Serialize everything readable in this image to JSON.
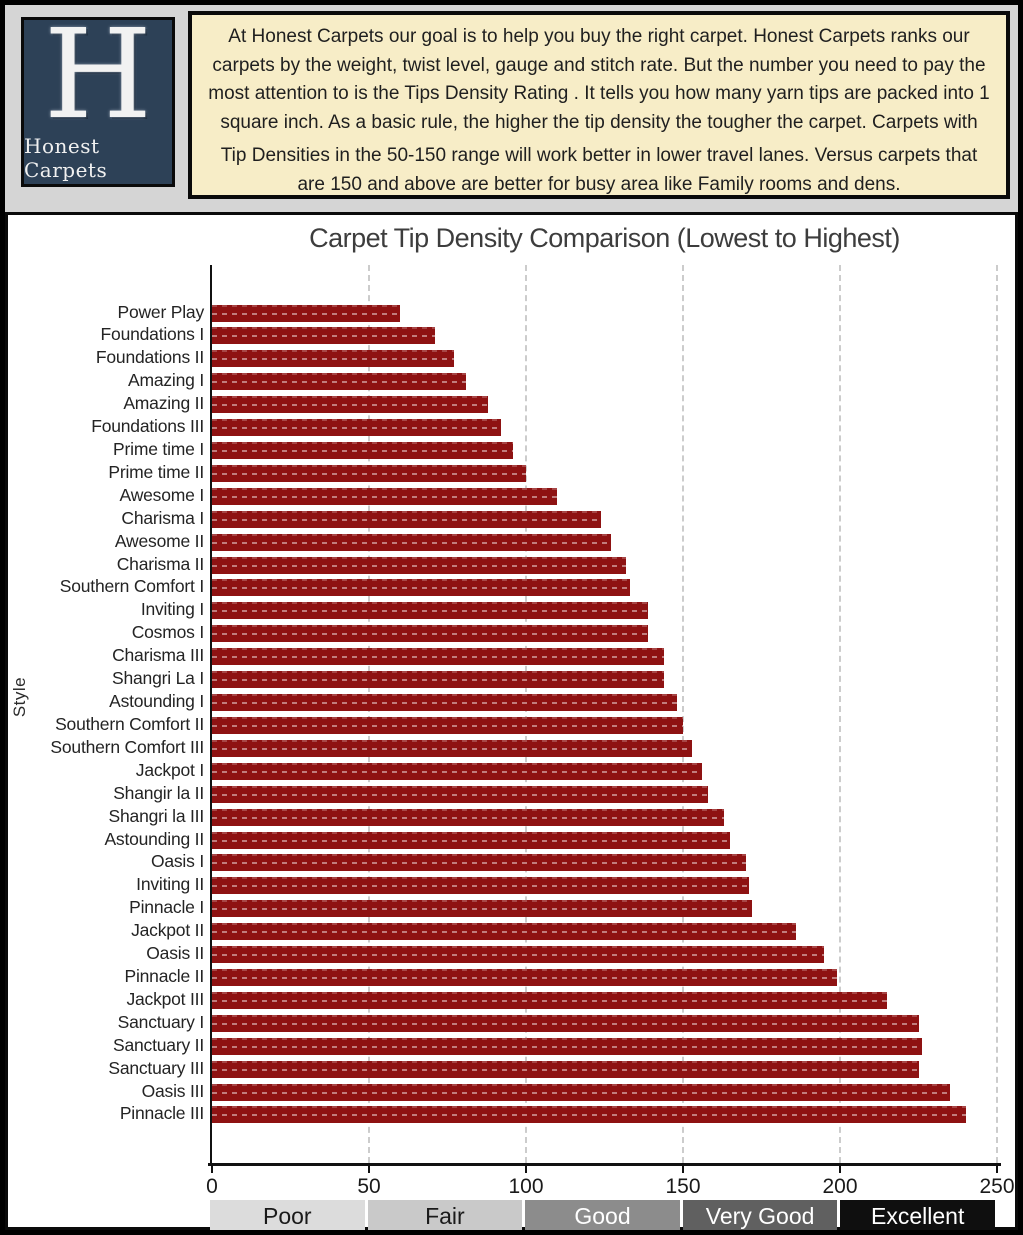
{
  "logo": {
    "letter": "H",
    "name": "Honest Carpets"
  },
  "intro": {
    "paragraph1": "At  Honest Carpets our goal is to help you buy the right carpet.    Honest Carpets  ranks  our carpets by the weight, twist level, gauge and stitch rate.  But the number you need to pay the most attention to is the Tips Density Rating .  It tells you how many yarn tips are packed into 1 square inch.   As a basic rule, the higher the tip density the tougher the carpet.  Carpets with",
    "paragraph2": "Tip Densities in the  50-150 range will work better in lower travel lanes. Versus carpets that are 150 and above are better for busy area like Family rooms and dens."
  },
  "colors": {
    "bar": "#8e1212",
    "logo_navy": "#2d4157",
    "intro_cream": "#f7edc7",
    "banner_gray": "#d5d5d5"
  },
  "chart_data": {
    "type": "bar",
    "orientation": "horizontal",
    "title": "Carpet Tip Density Comparison (Lowest to Highest)",
    "xlabel": "",
    "ylabel": "Style",
    "xlim": [
      0,
      250
    ],
    "xticks": [
      0,
      50,
      100,
      150,
      200,
      250
    ],
    "grid": "vertical-dashed",
    "legend": "none",
    "categories": [
      "Power Play",
      "Foundations I",
      "Foundations II",
      "Amazing I",
      "Amazing II",
      "Foundations III",
      "Prime time I",
      "Prime time II",
      "Awesome I",
      "Charisma I",
      "Awesome II",
      "Charisma II",
      "Southern Comfort I",
      "Inviting I",
      "Cosmos I",
      "Charisma III",
      "Shangri La I",
      "Astounding I",
      "Southern Comfort II",
      "Southern Comfort III",
      "Jackpot I",
      "Shangir la II",
      "Shangri la III",
      "Astounding II",
      "Oasis I",
      "Inviting II",
      "Pinnacle I",
      "Jackpot II",
      "Oasis II",
      "Pinnacle II",
      "Jackpot III",
      "Sanctuary I",
      "Sanctuary II",
      "Sanctuary III",
      "Oasis III",
      "Pinnacle III"
    ],
    "values": [
      60,
      71,
      77,
      81,
      88,
      92,
      96,
      100,
      110,
      124,
      127,
      132,
      133,
      139,
      139,
      144,
      144,
      148,
      150,
      153,
      156,
      158,
      163,
      165,
      170,
      171,
      172,
      186,
      195,
      199,
      215,
      225,
      226,
      225,
      235,
      240
    ]
  },
  "rating_scale": [
    {
      "label": "Poor",
      "range": [
        0,
        50
      ],
      "color": "#dcdcdc",
      "text_color": "#1a1a1a"
    },
    {
      "label": "Fair",
      "range": [
        50,
        100
      ],
      "color": "#c9c9c9",
      "text_color": "#1a1a1a"
    },
    {
      "label": "Good",
      "range": [
        100,
        150
      ],
      "color": "#8c8c8c",
      "text_color": "#ffffff"
    },
    {
      "label": "Very Good",
      "range": [
        150,
        200
      ],
      "color": "#606060",
      "text_color": "#ffffff"
    },
    {
      "label": "Excellent",
      "range": [
        200,
        250
      ],
      "color": "#0f0f0f",
      "text_color": "#ffffff"
    }
  ]
}
